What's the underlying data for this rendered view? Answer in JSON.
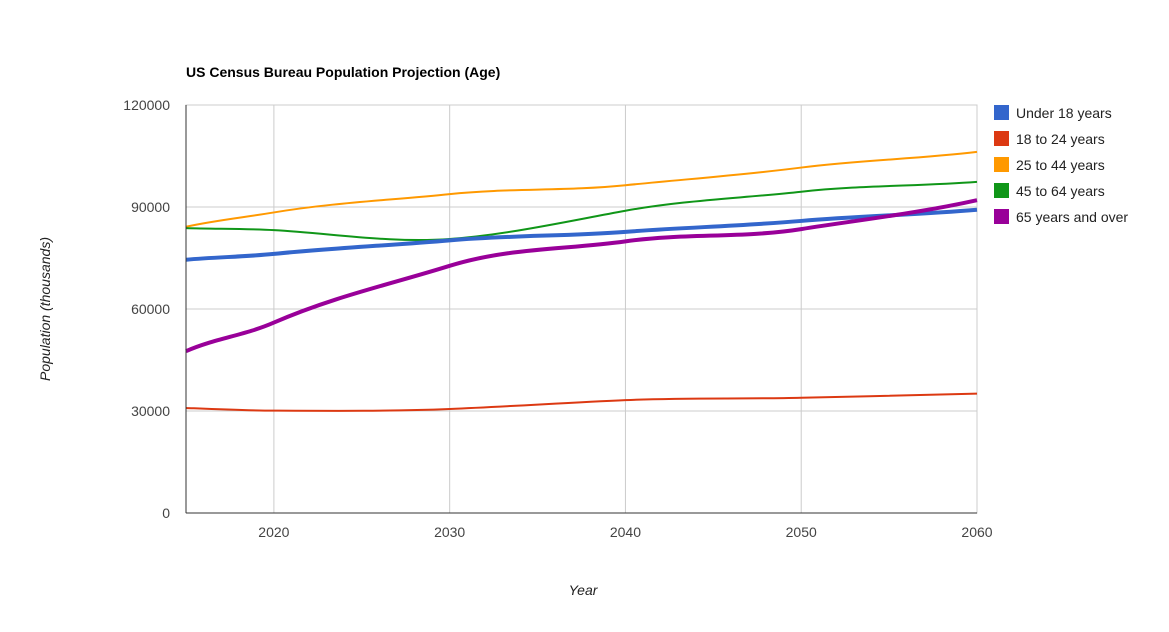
{
  "chart_data": {
    "type": "line",
    "title": "US Census Bureau Population Projection (Age)",
    "xlabel": "Year",
    "ylabel": "Population (thousands)",
    "x": [
      2015,
      2020,
      2030,
      2040,
      2050,
      2060
    ],
    "xlim": [
      2015,
      2060
    ],
    "ylim": [
      0,
      120000
    ],
    "xticks": [
      "2020",
      "2030",
      "2040",
      "2050",
      "2060"
    ],
    "yticks": [
      "0",
      "30000",
      "60000",
      "90000",
      "120000"
    ],
    "grid": true,
    "legend_position": "right",
    "curve": "smooth",
    "series": [
      {
        "name": "Under 18 years",
        "color": "#3366cc",
        "values": [
          74500,
          76200,
          80200,
          82700,
          85900,
          89200
        ]
      },
      {
        "name": "18 to 24 years",
        "color": "#dc3912",
        "values": [
          30900,
          30100,
          30600,
          33200,
          33900,
          35100
        ]
      },
      {
        "name": "25 to 44 years",
        "color": "#ff9900",
        "values": [
          84200,
          88400,
          93800,
          96400,
          101600,
          106200
        ]
      },
      {
        "name": "45 to 64 years",
        "color": "#109618",
        "values": [
          83800,
          83200,
          80600,
          88900,
          94500,
          97400
        ]
      },
      {
        "name": "65 years and over",
        "color": "#990099",
        "values": [
          47600,
          56000,
          72700,
          79900,
          83500,
          92000
        ]
      }
    ]
  }
}
